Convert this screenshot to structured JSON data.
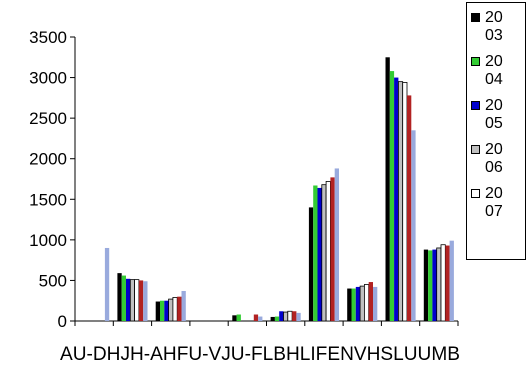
{
  "chart_data": {
    "type": "bar",
    "title": "",
    "xlabel": "",
    "ylabel": "",
    "ylim": [
      0,
      3500
    ],
    "yticks": [
      0,
      500,
      1000,
      1500,
      2000,
      2500,
      3000,
      3500
    ],
    "tick_label_text": "AU-DHJH-AHFU-VJU-FLBHLIFENVHSLUUMB",
    "categories": [
      "AU-D",
      "HJH",
      "HF-A",
      "HFU-V",
      "JU-F",
      "LBH",
      "LIFE",
      "NVH",
      "SLU",
      "UMB"
    ],
    "legend_labels": [
      "20\n03",
      "20\n04",
      "20\n05",
      "20\n06",
      "20\n07"
    ],
    "series": [
      {
        "name": "2003",
        "color": "#000000",
        "values": [
          0,
          590,
          240,
          0,
          70,
          50,
          1400,
          400,
          3250,
          880
        ]
      },
      {
        "name": "2004",
        "color": "#33cc33",
        "values": [
          0,
          560,
          250,
          0,
          80,
          55,
          1670,
          400,
          3080,
          870
        ]
      },
      {
        "name": "2005",
        "color": "#0000cc",
        "values": [
          0,
          520,
          250,
          0,
          0,
          120,
          1640,
          420,
          3000,
          880
        ]
      },
      {
        "name": "2006",
        "color": "#c0c0c0",
        "values": [
          0,
          510,
          270,
          0,
          0,
          110,
          1680,
          430,
          2950,
          900
        ]
      },
      {
        "name": "2007",
        "color": "#ffffff",
        "values": [
          0,
          510,
          290,
          0,
          0,
          120,
          1720,
          450,
          2940,
          940
        ]
      },
      {
        "name": "",
        "color": "#b22222",
        "values": [
          0,
          500,
          300,
          0,
          80,
          120,
          1770,
          480,
          2780,
          930
        ]
      },
      {
        "name": "",
        "color": "#99aadd",
        "values": [
          900,
          490,
          370,
          0,
          55,
          100,
          1880,
          420,
          2350,
          990
        ]
      }
    ],
    "grid": false,
    "legend_position": "top-right"
  }
}
